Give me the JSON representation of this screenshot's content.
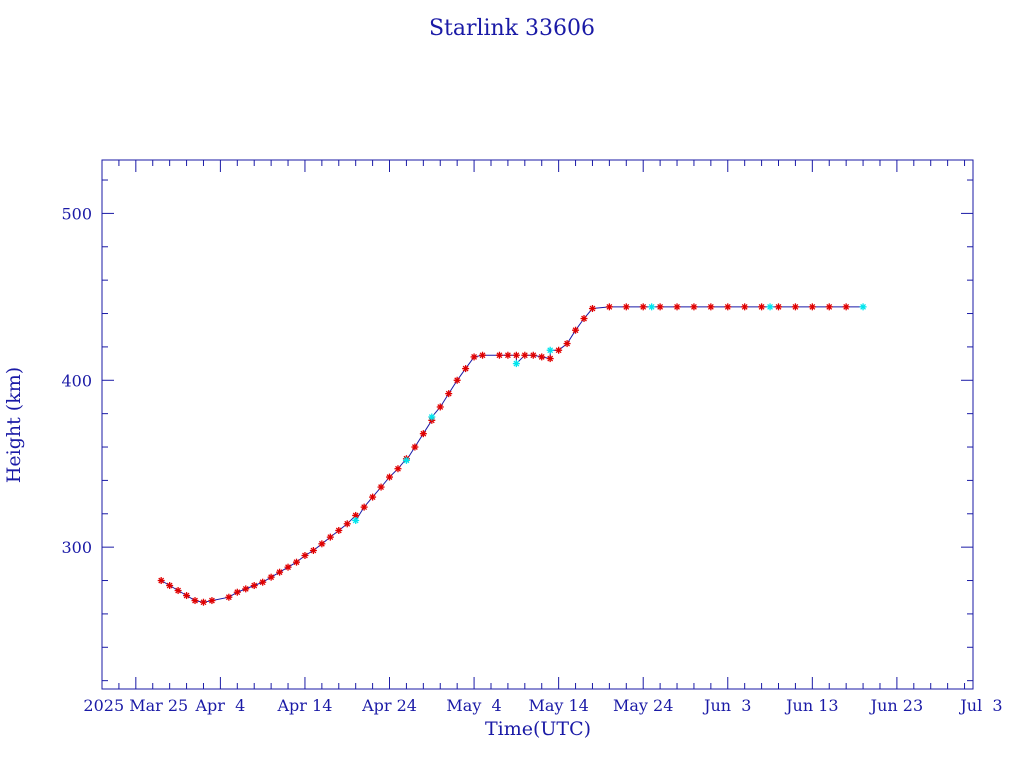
{
  "chart_data": {
    "type": "scatter",
    "title": "Starlink 33606",
    "xlabel": "Time(UTC)",
    "ylabel": "Height (km)",
    "x_tick_labels": [
      "2025 Mar 25",
      "Apr  4",
      "Apr 14",
      "Apr 24",
      "May  4",
      "May 14",
      "May 24",
      "Jun  3",
      "Jun 13",
      "Jun 23",
      "Jul  3"
    ],
    "x_tick_dates": [
      "2025-03-25",
      "2025-04-04",
      "2025-04-14",
      "2025-04-24",
      "2025-05-04",
      "2025-05-14",
      "2025-05-24",
      "2025-06-03",
      "2025-06-13",
      "2025-06-23",
      "2025-07-03"
    ],
    "xlim": [
      "2025-03-21",
      "2025-07-02"
    ],
    "y_ticks": [
      300,
      400,
      500
    ],
    "ylim": [
      215,
      532
    ],
    "grid": false,
    "colors": {
      "axes": "#1a1aa6",
      "line": "#1a1aa6",
      "red_markers": "#e00000",
      "cyan_markers": "#00e5ee"
    },
    "series": [
      {
        "marker": "red-star",
        "points": [
          [
            "2025-03-28",
            280
          ],
          [
            "2025-03-29",
            277
          ],
          [
            "2025-03-30",
            274
          ],
          [
            "2025-03-31",
            271
          ],
          [
            "2025-04-01",
            268
          ],
          [
            "2025-04-02",
            267
          ],
          [
            "2025-04-03",
            268
          ],
          [
            "2025-04-05",
            270
          ],
          [
            "2025-04-06",
            273
          ],
          [
            "2025-04-07",
            275
          ],
          [
            "2025-04-08",
            277
          ],
          [
            "2025-04-09",
            279
          ],
          [
            "2025-04-10",
            282
          ],
          [
            "2025-04-11",
            285
          ],
          [
            "2025-04-12",
            288
          ],
          [
            "2025-04-13",
            291
          ],
          [
            "2025-04-14",
            295
          ],
          [
            "2025-04-15",
            298
          ],
          [
            "2025-04-16",
            302
          ],
          [
            "2025-04-17",
            306
          ],
          [
            "2025-04-18",
            310
          ],
          [
            "2025-04-19",
            314
          ],
          [
            "2025-04-20",
            319
          ],
          [
            "2025-04-21",
            324
          ],
          [
            "2025-04-22",
            330
          ],
          [
            "2025-04-23",
            336
          ],
          [
            "2025-04-24",
            342
          ],
          [
            "2025-04-25",
            347
          ],
          [
            "2025-04-26",
            353
          ],
          [
            "2025-04-27",
            360
          ],
          [
            "2025-04-28",
            368
          ],
          [
            "2025-04-29",
            376
          ],
          [
            "2025-04-30",
            384
          ],
          [
            "2025-05-01",
            392
          ],
          [
            "2025-05-02",
            400
          ],
          [
            "2025-05-03",
            407
          ],
          [
            "2025-05-04",
            414
          ],
          [
            "2025-05-05",
            415
          ],
          [
            "2025-05-07",
            415
          ],
          [
            "2025-05-08",
            415
          ],
          [
            "2025-05-09",
            415
          ],
          [
            "2025-05-10",
            415
          ],
          [
            "2025-05-11",
            415
          ],
          [
            "2025-05-12",
            414
          ],
          [
            "2025-05-13",
            413
          ],
          [
            "2025-05-14",
            418
          ],
          [
            "2025-05-15",
            422
          ],
          [
            "2025-05-16",
            430
          ],
          [
            "2025-05-17",
            437
          ],
          [
            "2025-05-18",
            443
          ],
          [
            "2025-05-20",
            444
          ],
          [
            "2025-05-22",
            444
          ],
          [
            "2025-05-24",
            444
          ],
          [
            "2025-05-26",
            444
          ],
          [
            "2025-05-28",
            444
          ],
          [
            "2025-05-30",
            444
          ],
          [
            "2025-06-01",
            444
          ],
          [
            "2025-06-03",
            444
          ],
          [
            "2025-06-05",
            444
          ],
          [
            "2025-06-07",
            444
          ],
          [
            "2025-06-09",
            444
          ],
          [
            "2025-06-11",
            444
          ],
          [
            "2025-06-13",
            444
          ],
          [
            "2025-06-15",
            444
          ],
          [
            "2025-06-17",
            444
          ]
        ]
      },
      {
        "marker": "cyan-star",
        "points": [
          [
            "2025-04-20",
            316
          ],
          [
            "2025-04-26",
            352
          ],
          [
            "2025-04-29",
            378
          ],
          [
            "2025-05-09",
            410
          ],
          [
            "2025-05-13",
            418
          ],
          [
            "2025-05-25",
            444
          ],
          [
            "2025-06-08",
            444
          ],
          [
            "2025-06-19",
            444
          ]
        ]
      }
    ]
  }
}
